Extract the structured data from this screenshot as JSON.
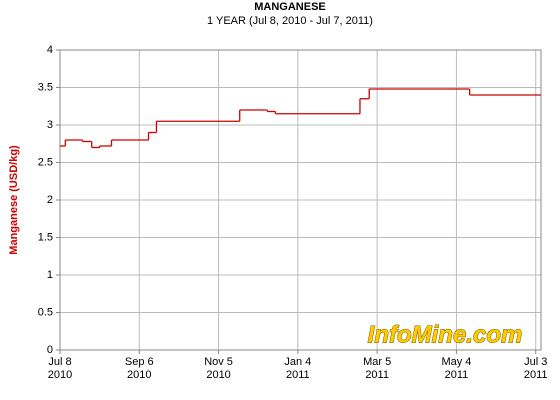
{
  "chart_data": {
    "type": "line",
    "step": "post",
    "title": "MANGANESE",
    "subtitle": "1 YEAR (Jul 8, 2010 - Jul 7, 2011)",
    "ylabel": "Manganese (USD/kg)",
    "watermark": "InfoMine.com",
    "x": [
      "2010-07-08",
      "2010-07-12",
      "2010-07-25",
      "2010-08-01",
      "2010-08-07",
      "2010-08-16",
      "2010-09-13",
      "2010-09-19",
      "2010-11-21",
      "2010-12-12",
      "2010-12-18",
      "2011-02-20",
      "2011-02-27",
      "2011-05-14",
      "2011-07-07"
    ],
    "series": [
      {
        "name": "Manganese",
        "color": "#cc0000",
        "values": [
          2.72,
          2.8,
          2.78,
          2.7,
          2.72,
          2.8,
          2.9,
          3.05,
          3.2,
          3.18,
          3.15,
          3.35,
          3.48,
          3.4,
          3.4
        ]
      }
    ],
    "xlim": [
      "2010-07-08",
      "2011-07-07"
    ],
    "xticks": [
      {
        "value": "2010-07-08",
        "label": [
          "Jul 8",
          "2010"
        ]
      },
      {
        "value": "2010-09-06",
        "label": [
          "Sep 6",
          "2010"
        ]
      },
      {
        "value": "2010-11-05",
        "label": [
          "Nov 5",
          "2010"
        ]
      },
      {
        "value": "2011-01-04",
        "label": [
          "Jan 4",
          "2011"
        ]
      },
      {
        "value": "2011-03-05",
        "label": [
          "Mar 5",
          "2011"
        ]
      },
      {
        "value": "2011-05-04",
        "label": [
          "May 4",
          "2011"
        ]
      },
      {
        "value": "2011-07-03",
        "label": [
          "Jul 3",
          "2011"
        ]
      }
    ],
    "ylim": [
      0,
      4
    ],
    "yticks": [
      0,
      0.5,
      1,
      1.5,
      2,
      2.5,
      3,
      3.5,
      4
    ],
    "grid": true
  }
}
